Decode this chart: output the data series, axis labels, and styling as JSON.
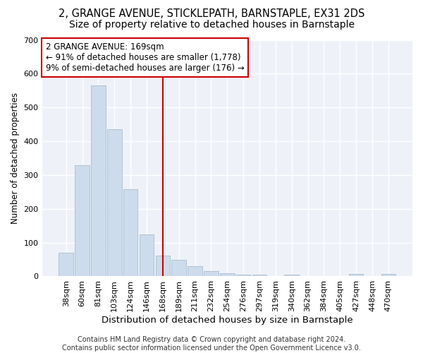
{
  "title1": "2, GRANGE AVENUE, STICKLEPATH, BARNSTAPLE, EX31 2DS",
  "title2": "Size of property relative to detached houses in Barnstaple",
  "xlabel": "Distribution of detached houses by size in Barnstaple",
  "ylabel": "Number of detached properties",
  "categories": [
    "38sqm",
    "60sqm",
    "81sqm",
    "103sqm",
    "124sqm",
    "146sqm",
    "168sqm",
    "189sqm",
    "211sqm",
    "232sqm",
    "254sqm",
    "276sqm",
    "297sqm",
    "319sqm",
    "340sqm",
    "362sqm",
    "384sqm",
    "405sqm",
    "427sqm",
    "448sqm",
    "470sqm"
  ],
  "values": [
    70,
    330,
    565,
    435,
    258,
    125,
    62,
    50,
    30,
    15,
    10,
    6,
    6,
    0,
    5,
    0,
    0,
    0,
    7,
    0,
    7
  ],
  "bar_color": "#ccdcec",
  "bar_edge_color": "#aabccc",
  "vline_x_idx": 6,
  "vline_color": "#cc0000",
  "annotation_text": "2 GRANGE AVENUE: 169sqm\n← 91% of detached houses are smaller (1,778)\n9% of semi-detached houses are larger (176) →",
  "annotation_box_facecolor": "#ffffff",
  "annotation_box_edgecolor": "#cc0000",
  "footer1": "Contains HM Land Registry data © Crown copyright and database right 2024.",
  "footer2": "Contains public sector information licensed under the Open Government Licence v3.0.",
  "bg_color": "#ffffff",
  "plot_bg_color": "#eef2f8",
  "ylim": [
    0,
    700
  ],
  "yticks": [
    0,
    100,
    200,
    300,
    400,
    500,
    600,
    700
  ],
  "grid_color": "#ffffff",
  "title1_fontsize": 10.5,
  "title2_fontsize": 10,
  "xlabel_fontsize": 9.5,
  "ylabel_fontsize": 8.5,
  "tick_fontsize": 8,
  "annotation_fontsize": 8.5,
  "footer_fontsize": 7
}
